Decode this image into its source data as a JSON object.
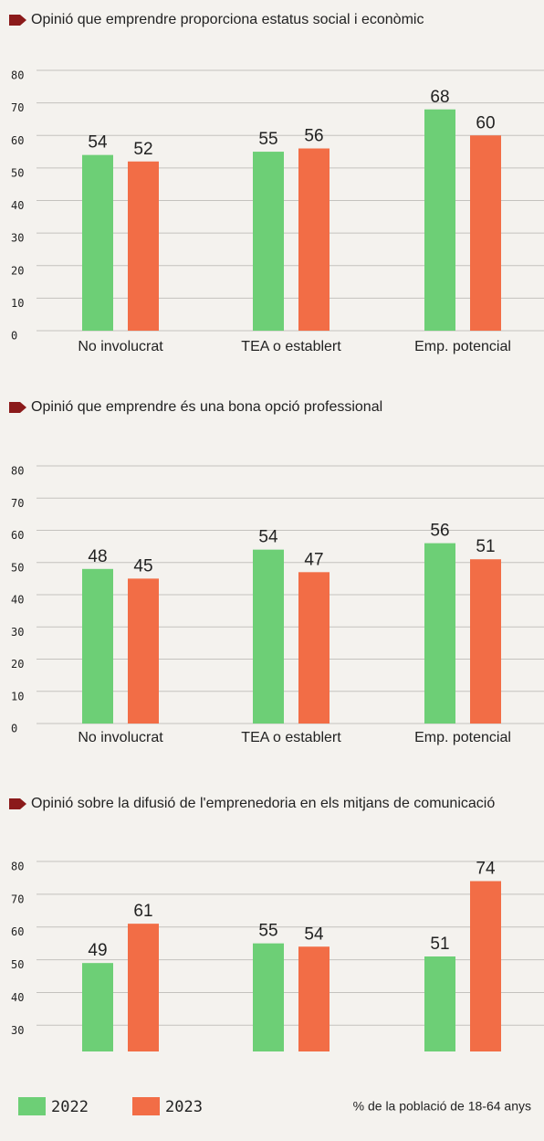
{
  "chart_data": [
    {
      "type": "bar",
      "title": "Opinió que emprendre proporciona estatus social i econòmic",
      "categories": [
        "No involucrat",
        "TEA o establert",
        "Emp. potencial"
      ],
      "series": [
        {
          "name": "2022",
          "color": "#6dcf76",
          "values": [
            54,
            55,
            68
          ]
        },
        {
          "name": "2023",
          "color": "#f26d46",
          "values": [
            52,
            56,
            60
          ]
        }
      ],
      "ylim": [
        0,
        80
      ],
      "yticks": [
        0,
        10,
        20,
        30,
        40,
        50,
        60,
        70,
        80
      ],
      "grid": true
    },
    {
      "type": "bar",
      "title": "Opinió que emprendre és una bona opció professional",
      "categories": [
        "No involucrat",
        "TEA o establert",
        "Emp. potencial"
      ],
      "series": [
        {
          "name": "2022",
          "color": "#6dcf76",
          "values": [
            48,
            54,
            56
          ]
        },
        {
          "name": "2023",
          "color": "#f26d46",
          "values": [
            45,
            47,
            51
          ]
        }
      ],
      "ylim": [
        0,
        80
      ],
      "yticks": [
        0,
        10,
        20,
        30,
        40,
        50,
        60,
        70,
        80
      ],
      "grid": true
    },
    {
      "type": "bar",
      "title": "Opinió sobre la difusió de l'emprenedoria en els mitjans de comunicació",
      "categories": [
        null,
        null,
        null
      ],
      "series": [
        {
          "name": "2022",
          "color": "#6dcf76",
          "values": [
            49,
            55,
            51
          ]
        },
        {
          "name": "2023",
          "color": "#f26d46",
          "values": [
            61,
            54,
            74
          ]
        }
      ],
      "ylim": [
        22,
        80
      ],
      "yticks": [
        30,
        40,
        50,
        60,
        70,
        80
      ],
      "grid": true
    }
  ],
  "note": "% de la població de 18-64 anys"
}
